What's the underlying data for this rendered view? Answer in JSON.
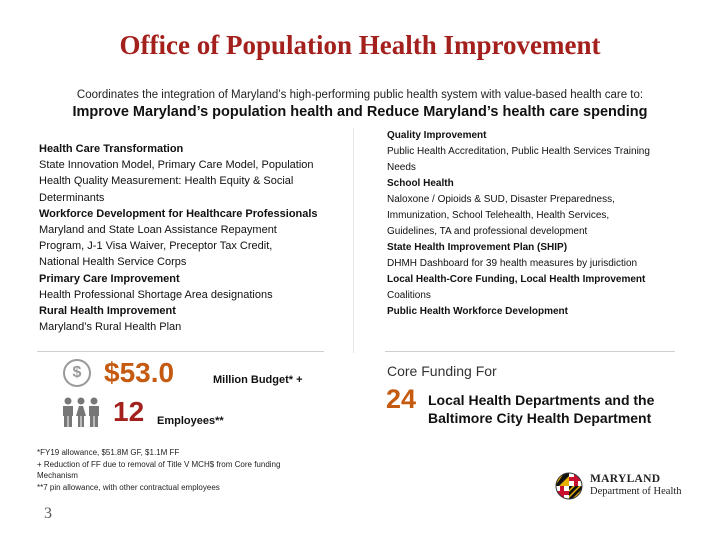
{
  "title": "Office of Population Health Improvement",
  "subtitle": "Coordinates the integration of Maryland’s high-performing public health system with value-based health care to:",
  "headline": "Improve Maryland’s population health and Reduce Maryland’s health care spending",
  "left_column": [
    {
      "text": "Health Care Transformation",
      "bold": true
    },
    {
      "text": "State Innovation Model, Primary Care Model, Population",
      "bold": false
    },
    {
      "text": "Health Quality Measurement: Health Equity & Social",
      "bold": false
    },
    {
      "text": "Determinants",
      "bold": false
    },
    {
      "text": "Workforce Development for Healthcare Professionals",
      "bold": true
    },
    {
      "text": "Maryland and State Loan Assistance Repayment",
      "bold": false
    },
    {
      "text": "Program, J-1 Visa Waiver, Preceptor Tax Credit,",
      "bold": false
    },
    {
      "text": "National Health Service Corps",
      "bold": false
    },
    {
      "text": "Primary Care Improvement",
      "bold": true
    },
    {
      "text": "Health Professional Shortage Area designations",
      "bold": false
    },
    {
      "text": "Rural Health Improvement",
      "bold": true
    },
    {
      "text": "Maryland’s Rural Health Plan",
      "bold": false
    }
  ],
  "right_column": [
    {
      "text": "Quality Improvement",
      "bold": true
    },
    {
      "text": "Public Health Accreditation, Public Health Services Training",
      "bold": false
    },
    {
      "text": "Needs",
      "bold": false
    },
    {
      "text": "School Health",
      "bold": true
    },
    {
      "text": "Naloxone / Opioids & SUD, Disaster Preparedness,",
      "bold": false
    },
    {
      "text": "Immunization, School Telehealth, Health Services,",
      "bold": false
    },
    {
      "text": "Guidelines, TA and professional development",
      "bold": false
    },
    {
      "text": "State Health Improvement Plan (SHIP)",
      "bold": true
    },
    {
      "text": "DHMH Dashboard for 39 health measures by jurisdiction",
      "bold": false
    },
    {
      "text": "Local Health-Core Funding, Local Health Improvement",
      "bold": true
    },
    {
      "text": "Coalitions",
      "bold": false
    },
    {
      "text": "Public Health Workforce Development",
      "bold": true
    }
  ],
  "budget": {
    "icon": "dollar-icon",
    "icon_glyph": "$",
    "amount": "$53.0",
    "label": "Million Budget* +"
  },
  "employees": {
    "icon": "people-icon",
    "count": "12",
    "label": "Employees**"
  },
  "footnotes": [
    "*FY19 allowance, $51.8M GF, $1.1M FF",
    "+ Reduction of FF due to removal of Title V MCH$ from Core funding",
    "Mechanism",
    "**7 pin allowance, with other contractual employees"
  ],
  "page_number": "3",
  "core_funding": {
    "label": "Core Funding For",
    "count": "24",
    "description": "Local Health Departments and the Baltimore City Health Department"
  },
  "logo": {
    "name": "MARYLAND",
    "department": "Department of Health"
  },
  "colors": {
    "title": "#a3201d",
    "budget_amount": "#c55a11",
    "employees_count": "#a3201d",
    "core_count": "#c55a11"
  }
}
